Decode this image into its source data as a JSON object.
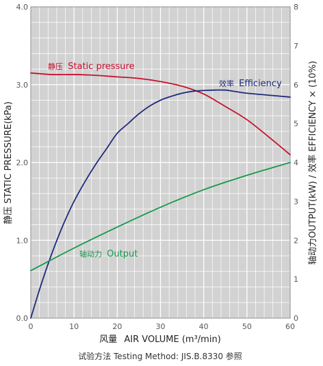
{
  "chart_data": {
    "type": "line",
    "xlabel_zh": "风量",
    "xlabel": "AIR VOLUME (m³/min)",
    "ylabel_left": "静压 STATIC PRESSURE(kPa)",
    "ylabel_right": "轴动力OUTPUT(kW) / 效率 EFFICIENCY × (10%)",
    "footnote": "试验方法 Testing Method: JIS.B.8330 参照",
    "xlim": [
      0,
      60
    ],
    "ylim_left": [
      0,
      4
    ],
    "ylim_right": [
      0,
      8
    ],
    "x_ticks": [
      "0",
      "10",
      "20",
      "30",
      "40",
      "50",
      "60"
    ],
    "y_left_ticks": [
      "0.0",
      "1.0",
      "2.0",
      "3.0",
      "4.0"
    ],
    "y_right_ticks": [
      "0",
      "1",
      "2",
      "3",
      "4",
      "5",
      "6",
      "7",
      "8"
    ],
    "grid": true,
    "series": [
      {
        "name_zh": "静压",
        "name": "Static pressure",
        "axis": "left",
        "color": "#c8102e",
        "x": [
          0,
          5,
          10,
          15,
          20,
          25,
          30,
          35,
          40,
          45,
          50,
          55,
          60
        ],
        "y": [
          3.15,
          3.13,
          3.13,
          3.12,
          3.1,
          3.08,
          3.04,
          2.98,
          2.88,
          2.72,
          2.55,
          2.33,
          2.1
        ]
      },
      {
        "name_zh": "效率",
        "name": "Efficiency",
        "axis": "right",
        "color": "#1f2a7a",
        "x": [
          0,
          2.5,
          5,
          7.5,
          10,
          12.5,
          15,
          17.5,
          20,
          22.5,
          25,
          27.5,
          30,
          32.5,
          35,
          37.5,
          40,
          42.5,
          45,
          47.5,
          50,
          55,
          60
        ],
        "y": [
          0,
          0.9,
          1.7,
          2.4,
          3.0,
          3.5,
          3.95,
          4.35,
          4.75,
          5.0,
          5.25,
          5.45,
          5.6,
          5.7,
          5.78,
          5.83,
          5.85,
          5.86,
          5.86,
          5.82,
          5.78,
          5.73,
          5.68
        ]
      },
      {
        "name_zh": "轴动力",
        "name": "Output",
        "axis": "right",
        "color": "#129a4a",
        "x": [
          0,
          10,
          20,
          30,
          40,
          50,
          60
        ],
        "y": [
          1.22,
          1.8,
          2.34,
          2.85,
          3.3,
          3.67,
          4.0
        ]
      }
    ]
  }
}
